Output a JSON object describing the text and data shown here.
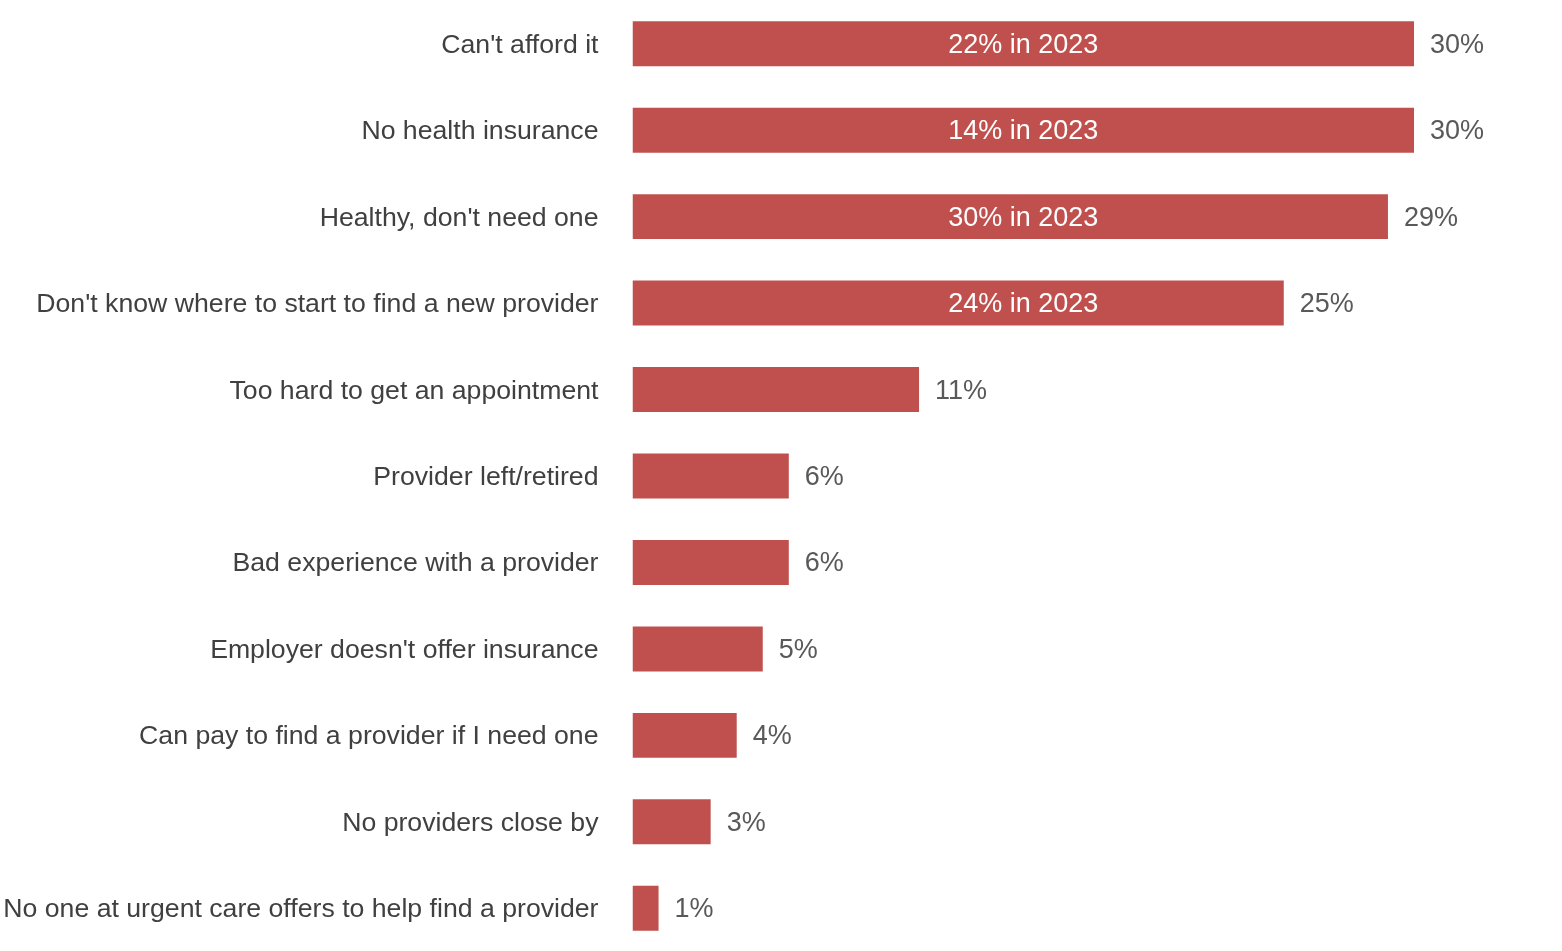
{
  "chart_data": {
    "type": "bar",
    "orientation": "horizontal",
    "categories": [
      "Can't afford it",
      "No health insurance",
      "Healthy, don't need one",
      "Don't know where to start to find a new provider",
      "Too hard to get an appointment",
      "Provider left/retired",
      "Bad experience with a provider",
      "Employer doesn't offer insurance",
      "Can pay to find a provider if I need one",
      "No providers close by",
      "No one at urgent care offers to help find a provider"
    ],
    "values": [
      30,
      30,
      29,
      25,
      11,
      6,
      6,
      5,
      4,
      3,
      1
    ],
    "color": "#c0504d",
    "value_labels": [
      "30%",
      "30%",
      "29%",
      "25%",
      "11%",
      "6%",
      "6%",
      "5%",
      "4%",
      "3%",
      "1%"
    ],
    "annotations": [
      "22% in 2023",
      "14% in 2023",
      "30% in 2023",
      "24% in 2023"
    ],
    "grid": false
  }
}
